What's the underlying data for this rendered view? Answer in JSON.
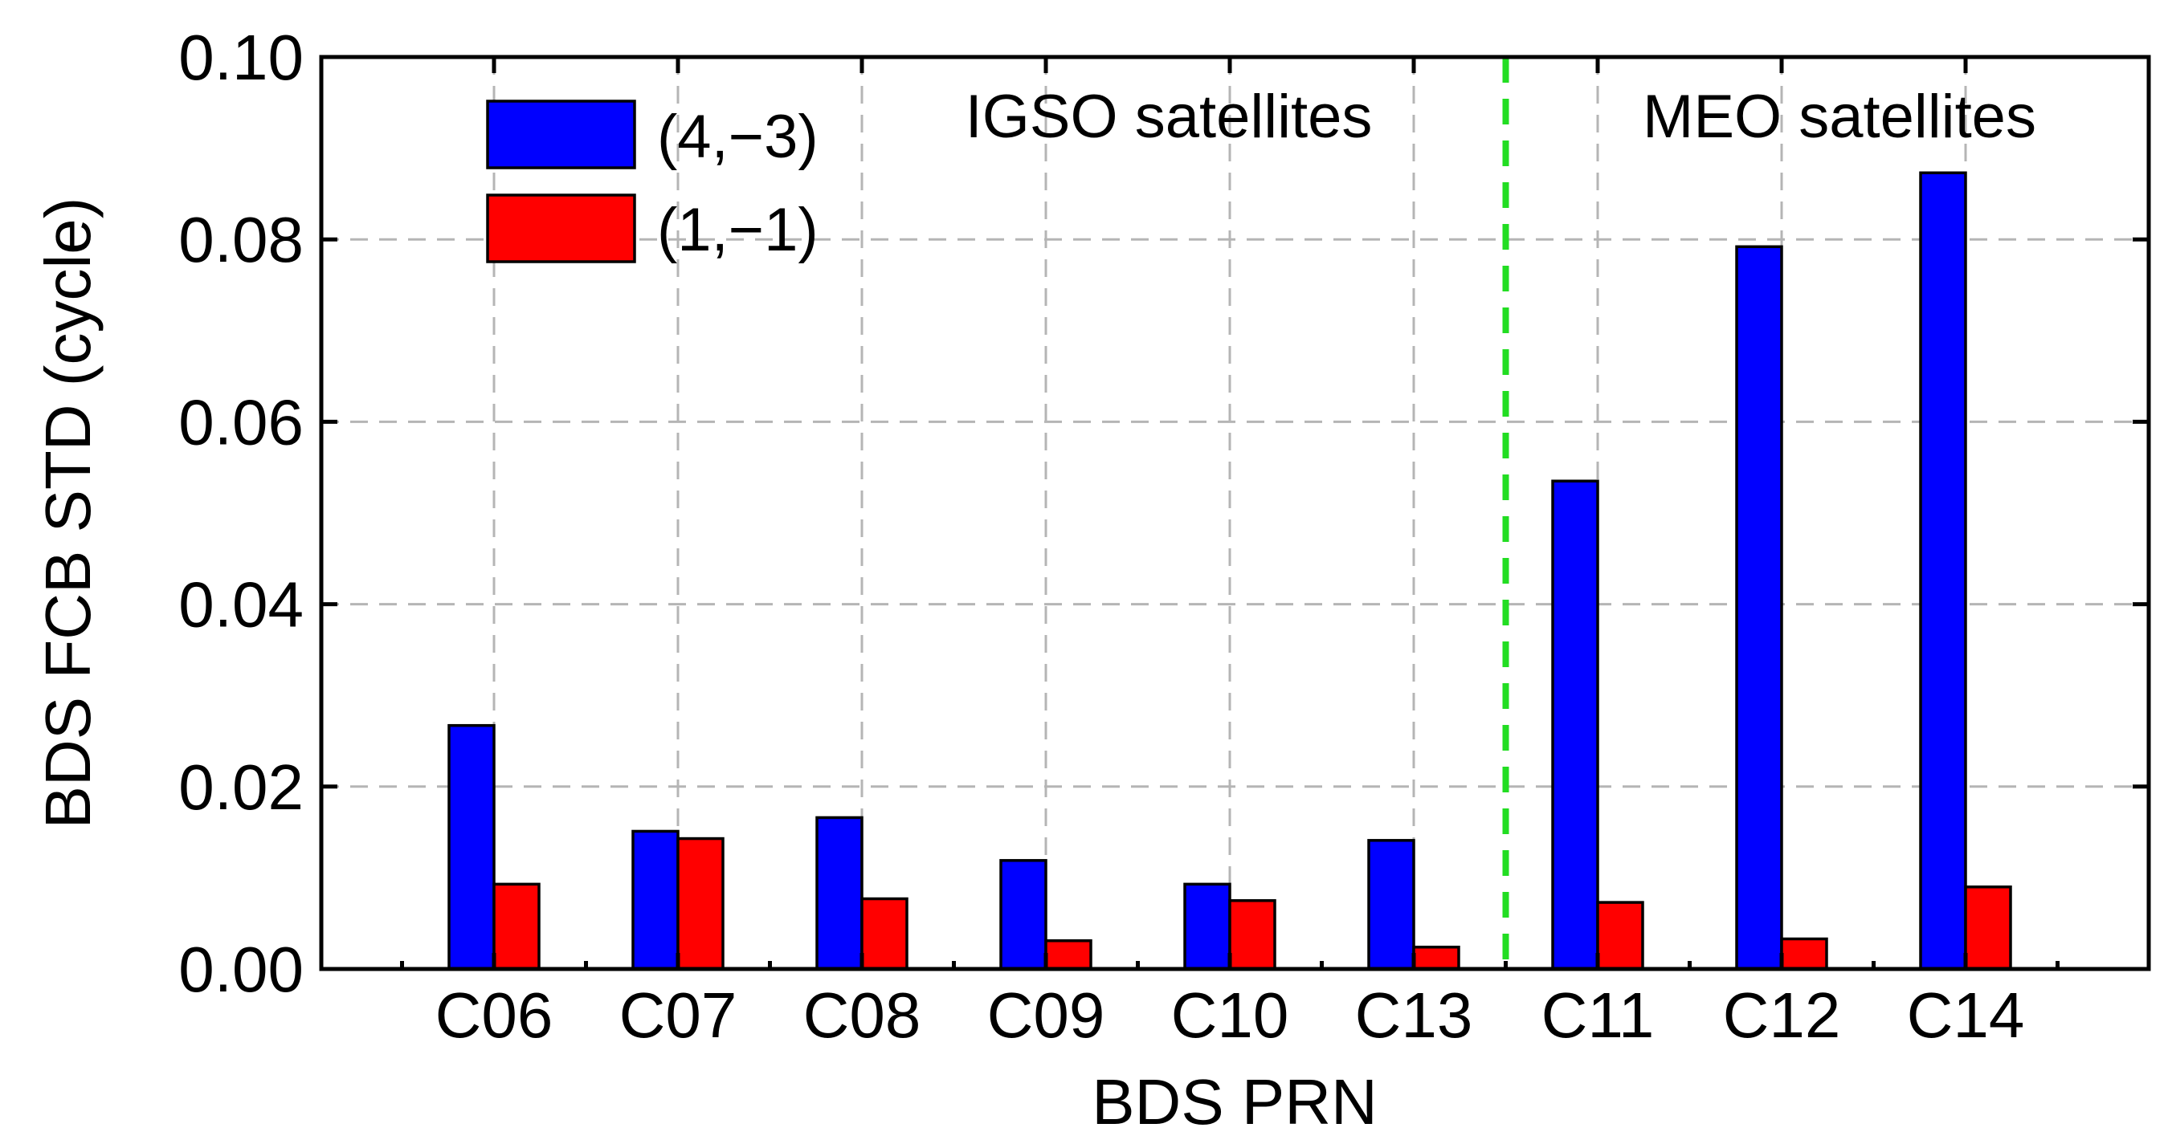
{
  "chart_data": {
    "type": "bar",
    "title": "",
    "xlabel": "BDS PRN",
    "ylabel": "BDS FCB STD (cycle)",
    "ylim": [
      0,
      0.1
    ],
    "yticks": [
      "0.00",
      "0.02",
      "0.04",
      "0.06",
      "0.08",
      "0.10"
    ],
    "ytick_values": [
      0,
      0.02,
      0.04,
      0.06,
      0.08,
      0.1
    ],
    "grid": true,
    "legend_position": "top-left",
    "categories": [
      "C06",
      "C07",
      "C08",
      "C09",
      "C10",
      "C13",
      "C11",
      "C12",
      "C14"
    ],
    "series": [
      {
        "name": "(4,−3)",
        "color": "#0000ff",
        "values": [
          0.0267,
          0.0151,
          0.0166,
          0.0119,
          0.0093,
          0.0141,
          0.0535,
          0.0792,
          0.0873
        ]
      },
      {
        "name": "(1,−1)",
        "color": "#ff0000",
        "values": [
          0.0093,
          0.0143,
          0.0077,
          0.0031,
          0.0075,
          0.0024,
          0.0073,
          0.0033,
          0.009
        ]
      }
    ],
    "regions": [
      {
        "label": "IGSO satellites",
        "categories": [
          "C06",
          "C07",
          "C08",
          "C09",
          "C10",
          "C13"
        ]
      },
      {
        "label": "MEO satellites",
        "categories": [
          "C11",
          "C12",
          "C14"
        ]
      }
    ],
    "divider_after_category": "C13",
    "divider_color": "#22dd22"
  }
}
